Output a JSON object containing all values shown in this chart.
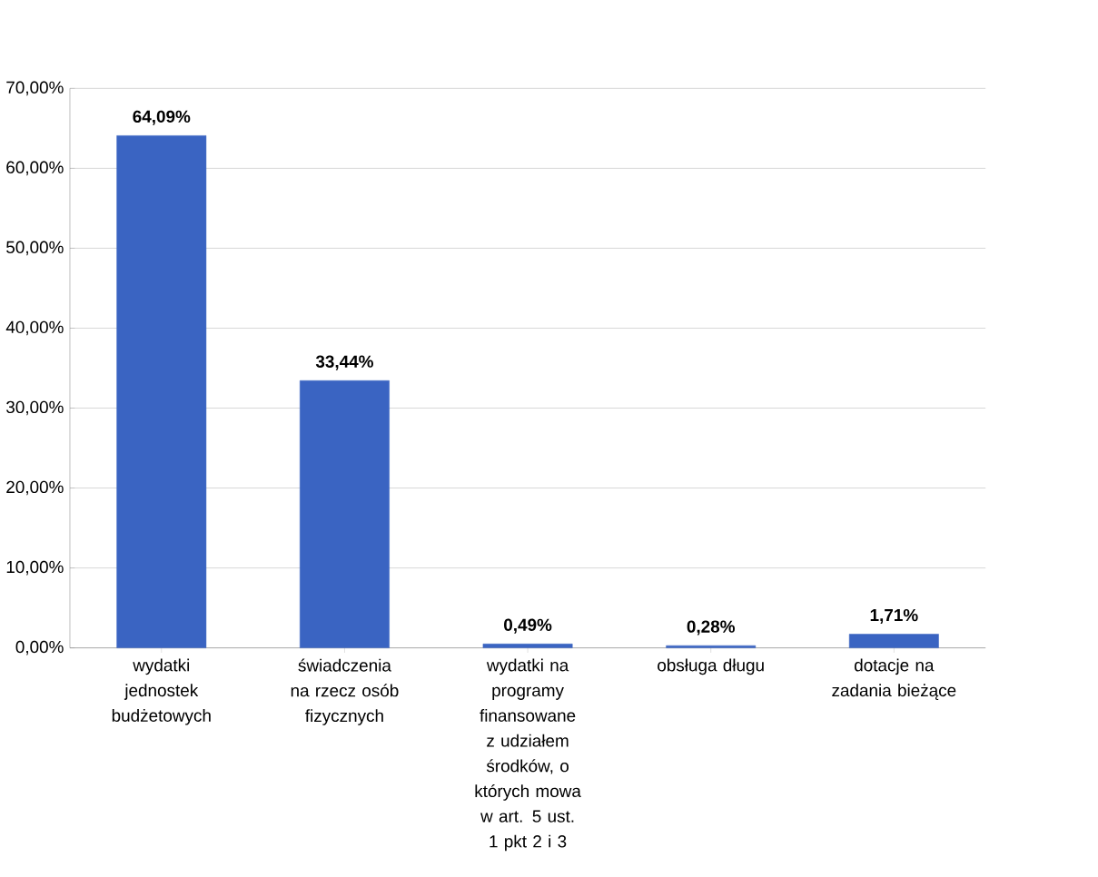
{
  "chart_data": {
    "type": "bar",
    "categories": [
      "wydatki jednostek budżetowych",
      "świadczenia na rzecz osób fizycznych",
      "wydatki na programy finansowane z udziałem środków, o których mowa w art. 5 ust. 1 pkt 2 i 3",
      "obsługa długu",
      "dotacje na zadania bieżące"
    ],
    "values": [
      64.09,
      33.44,
      0.49,
      0.28,
      1.71
    ],
    "value_labels": [
      "64,09%",
      "33,44%",
      "0,49%",
      "0,28%",
      "1,71%"
    ],
    "color": "#3a64c2",
    "ylim": [
      0,
      70
    ],
    "yticks": [
      {
        "value": 0,
        "label": "0,00%"
      },
      {
        "value": 10,
        "label": "10,00%"
      },
      {
        "value": 20,
        "label": "20,00%"
      },
      {
        "value": 30,
        "label": "30,00%"
      },
      {
        "value": 40,
        "label": "40,00%"
      },
      {
        "value": 50,
        "label": "50,00%"
      },
      {
        "value": 60,
        "label": "60,00%"
      },
      {
        "value": 70,
        "label": "70,00%"
      }
    ],
    "grid": "y"
  }
}
